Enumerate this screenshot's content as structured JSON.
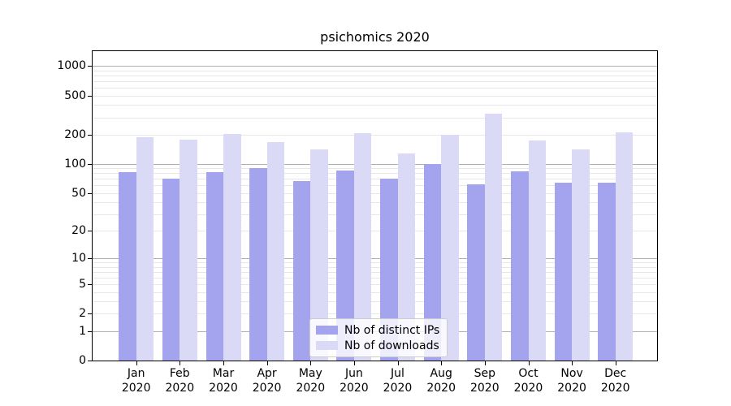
{
  "chart_data": {
    "type": "bar",
    "title": "psichomics 2020",
    "categories": [
      "Jan",
      "Feb",
      "Mar",
      "Apr",
      "May",
      "Jun",
      "Jul",
      "Aug",
      "Sep",
      "Oct",
      "Nov",
      "Dec"
    ],
    "category_year": "2020",
    "series": [
      {
        "name": "Nb of distinct IPs",
        "color": "#a4a4ee",
        "values": [
          82,
          70,
          82,
          90,
          66,
          85,
          70,
          99,
          62,
          83,
          64,
          64
        ]
      },
      {
        "name": "Nb of downloads",
        "color": "#dadaf7",
        "values": [
          186,
          178,
          203,
          168,
          141,
          207,
          129,
          197,
          325,
          173,
          142,
          212
        ]
      }
    ],
    "xlabel": "",
    "ylabel": "",
    "yscale": "log10(1+x)",
    "ylim": [
      0,
      1420
    ],
    "ytick_labels": [
      1000,
      500,
      200,
      100,
      50,
      20,
      10,
      5,
      2,
      1,
      0
    ],
    "grid": "on",
    "grid_major": [
      1,
      10,
      100,
      1000
    ],
    "grid_minor": [
      2,
      3,
      4,
      5,
      6,
      7,
      8,
      9,
      20,
      30,
      40,
      50,
      60,
      70,
      80,
      90,
      200,
      300,
      400,
      500,
      600,
      700,
      800,
      900
    ],
    "legend_position": "inside-bottom-center",
    "colors": {
      "grid_major": "#b0b0b0",
      "grid_minor": "#e7e7e7",
      "axis": "#000000",
      "background": "#ffffff"
    }
  }
}
